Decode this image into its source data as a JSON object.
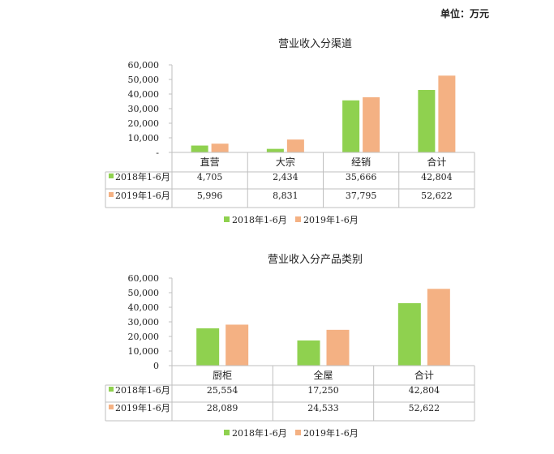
{
  "unit_label": "单位：万元",
  "colors": {
    "series_2018": "#8fd14f",
    "series_2019": "#f4b183",
    "axis": "#bfbfbf",
    "text": "#222222"
  },
  "chart_data": [
    {
      "type": "bar",
      "title": "营业收入分渠道",
      "categories": [
        "直营",
        "大宗",
        "经销",
        "合计"
      ],
      "series": [
        {
          "name": "2018年1-6月",
          "values": [
            4705,
            2434,
            35666,
            42804
          ],
          "labels": [
            "4,705",
            "2,434",
            "35,666",
            "42,804"
          ]
        },
        {
          "name": "2019年1-6月",
          "values": [
            5996,
            8831,
            37795,
            52622
          ],
          "labels": [
            "5,996",
            "8,831",
            "37,795",
            "52,622"
          ]
        }
      ],
      "ylim": [
        0,
        60000
      ],
      "yticks": [
        "-",
        "10,000",
        "20,000",
        "30,000",
        "40,000",
        "50,000",
        "60,000"
      ],
      "legend": "bottom",
      "data_table": true
    },
    {
      "type": "bar",
      "title": "营业收入分产品类别",
      "categories": [
        "厨柜",
        "全屋",
        "合计"
      ],
      "series": [
        {
          "name": "2018年1-6月",
          "values": [
            25554,
            17250,
            42804
          ],
          "labels": [
            "25,554",
            "17,250",
            "42,804"
          ]
        },
        {
          "name": "2019年1-6月",
          "values": [
            28089,
            24533,
            52622
          ],
          "labels": [
            "28,089",
            "24,533",
            "52,622"
          ]
        }
      ],
      "ylim": [
        0,
        60000
      ],
      "yticks": [
        "0",
        "10,000",
        "20,000",
        "30,000",
        "40,000",
        "50,000",
        "60,000"
      ],
      "legend": "bottom",
      "data_table": true
    }
  ]
}
